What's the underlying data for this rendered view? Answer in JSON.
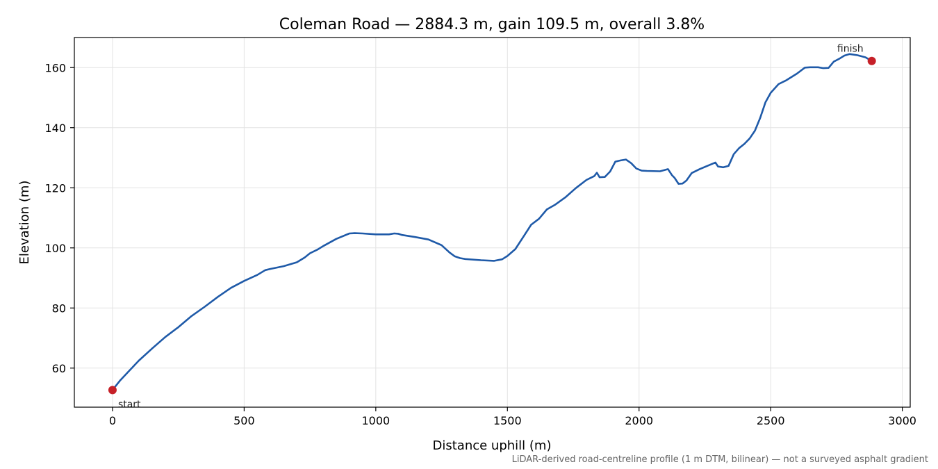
{
  "chart_data": {
    "type": "line",
    "title": "Coleman Road — 2884.3 m, gain 109.5 m, overall 3.8%",
    "xlabel": "Distance uphill (m)",
    "ylabel": "Elevation (m)",
    "footnote": "LiDAR-derived road-centreline profile (1 m DTM, bilinear) — not a surveyed asphalt gradient",
    "xlim": [
      -145,
      3030
    ],
    "ylim": [
      47,
      170
    ],
    "x_ticks": [
      0,
      500,
      1000,
      1500,
      2000,
      2500,
      3000
    ],
    "y_ticks": [
      60,
      80,
      100,
      120,
      140,
      160
    ],
    "grid": true,
    "colors": {
      "line": "#1f5aa8",
      "markers": "#c62028"
    },
    "series": [
      {
        "x": [
          0,
          30,
          60,
          100,
          150,
          200,
          250,
          300,
          350,
          400,
          450,
          500,
          550,
          580,
          600,
          650,
          700,
          730,
          750,
          780,
          800,
          850,
          900,
          920,
          950,
          1000,
          1050,
          1070,
          1085,
          1100,
          1150,
          1200,
          1250,
          1280,
          1300,
          1320,
          1340,
          1400,
          1450,
          1480,
          1500,
          1530,
          1560,
          1590,
          1620,
          1650,
          1680,
          1720,
          1760,
          1800,
          1830,
          1840,
          1850,
          1870,
          1890,
          1910,
          1930,
          1950,
          1970,
          1990,
          2010,
          2030,
          2080,
          2110,
          2125,
          2135,
          2150,
          2165,
          2180,
          2200,
          2230,
          2260,
          2290,
          2300,
          2320,
          2340,
          2360,
          2380,
          2400,
          2420,
          2440,
          2460,
          2480,
          2500,
          2530,
          2560,
          2600,
          2630,
          2650,
          2680,
          2700,
          2720,
          2740,
          2760,
          2780,
          2800,
          2830,
          2860,
          2884
        ],
        "y": [
          52.7,
          56.0,
          58.8,
          62.5,
          66.5,
          70.3,
          73.6,
          77.3,
          80.4,
          83.7,
          86.7,
          89.0,
          91.0,
          92.6,
          93.0,
          93.9,
          95.2,
          96.8,
          98.2,
          99.5,
          100.6,
          103.0,
          104.8,
          104.9,
          104.8,
          104.5,
          104.5,
          104.8,
          104.7,
          104.3,
          103.6,
          102.8,
          100.9,
          98.5,
          97.2,
          96.6,
          96.3,
          95.9,
          95.7,
          96.2,
          97.3,
          99.6,
          103.6,
          107.7,
          109.7,
          112.8,
          114.3,
          116.8,
          119.9,
          122.6,
          123.9,
          125.0,
          123.5,
          123.6,
          125.4,
          128.7,
          129.1,
          129.4,
          128.2,
          126.4,
          125.7,
          125.6,
          125.5,
          126.2,
          124.2,
          123.3,
          121.3,
          121.4,
          122.4,
          124.9,
          126.2,
          127.3,
          128.4,
          127.1,
          126.8,
          127.3,
          131.2,
          133.2,
          134.6,
          136.4,
          139.0,
          143.2,
          148.4,
          151.6,
          154.5,
          155.8,
          158.0,
          160.0,
          160.1,
          160.1,
          159.8,
          159.9,
          162.0,
          162.9,
          164.0,
          164.5,
          164.1,
          163.4,
          162.2
        ]
      }
    ],
    "annotations": [
      {
        "text": "start",
        "x": 0,
        "y": 52.7
      },
      {
        "text": "finish",
        "x": 2884,
        "y": 162.2
      }
    ]
  }
}
